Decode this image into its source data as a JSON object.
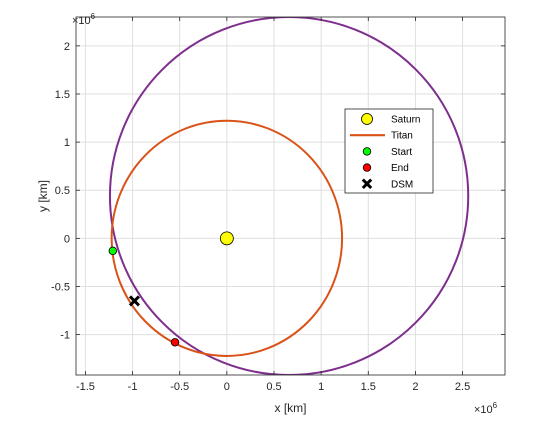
{
  "chart_data": {
    "type": "scatter",
    "title": "",
    "xlabel": "x [km]",
    "ylabel": "y [km]",
    "x_exponent_label": "×10",
    "x_exponent_power": "6",
    "y_exponent_label": "×10",
    "y_exponent_power": "6",
    "xlim": [
      -1.6,
      2.95
    ],
    "ylim": [
      -1.42,
      2.3
    ],
    "xticks": [
      -1.5,
      -1,
      -0.5,
      0,
      0.5,
      1,
      1.5,
      2,
      2.5
    ],
    "xtick_labels": [
      "-1.5",
      "-1",
      "-0.5",
      "0",
      "0.5",
      "1",
      "1.5",
      "2",
      "2.5"
    ],
    "yticks": [
      -1,
      -0.5,
      0,
      0.5,
      1,
      1.5,
      2
    ],
    "ytick_labels": [
      "-1",
      "-0.5",
      "0",
      "0.5",
      "1",
      "1.5",
      "2"
    ],
    "grid": true,
    "legend_position": "right",
    "series": [
      {
        "name": "Saturn",
        "kind": "marker",
        "marker": "circle",
        "color": "#ffff00",
        "edge": "#000000",
        "points": [
          [
            0,
            0
          ]
        ]
      },
      {
        "name": "Titan",
        "kind": "circle",
        "color": "#d95319",
        "center": [
          0,
          0
        ],
        "radius": 1.222
      },
      {
        "name": "Start",
        "kind": "marker",
        "marker": "circle",
        "color": "#00ff00",
        "edge": "#000000",
        "points": [
          [
            -1.21,
            -0.13
          ]
        ]
      },
      {
        "name": "End",
        "kind": "marker",
        "marker": "circle",
        "color": "#ff0000",
        "edge": "#000000",
        "points": [
          [
            -0.55,
            -1.08
          ]
        ]
      },
      {
        "name": "DSM",
        "kind": "marker",
        "marker": "x",
        "color": "#000000",
        "points": [
          [
            -0.98,
            -0.65
          ]
        ]
      }
    ],
    "transfer_orbit": {
      "color": "#7e2f8e",
      "center": [
        0.66,
        0.44
      ],
      "semi_axis_x": 1.9,
      "semi_axis_y": 1.86,
      "rotation_deg": 0
    }
  }
}
